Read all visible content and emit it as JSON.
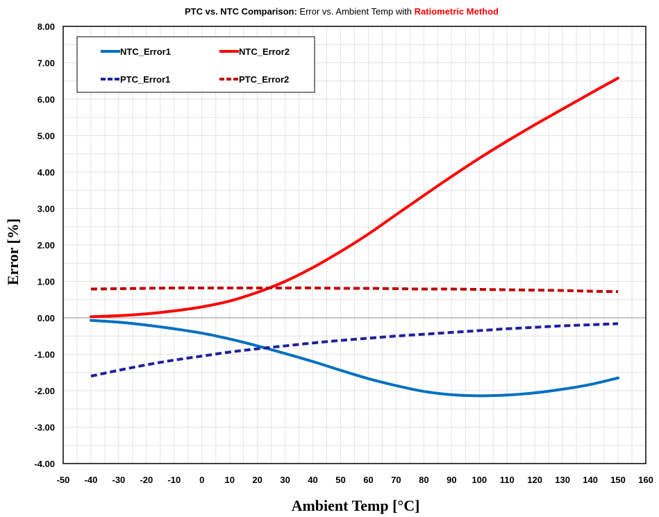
{
  "chart_data": {
    "type": "line",
    "title_parts": [
      {
        "text": "PTC vs. NTC Comparison:",
        "weight": "bold",
        "color": "#000000"
      },
      {
        "text": " Error vs. Ambient Temp with ",
        "weight": "normal",
        "color": "#000000"
      },
      {
        "text": "Ratiometric Method",
        "weight": "bold",
        "color": "#ff0000"
      }
    ],
    "xlabel": "Ambient Temp [°C]",
    "ylabel": "Error [%]",
    "xlim": [
      -50,
      160
    ],
    "ylim": [
      -4,
      8
    ],
    "x_ticks": [
      -50,
      -40,
      -30,
      -20,
      -10,
      0,
      10,
      20,
      30,
      40,
      50,
      60,
      70,
      80,
      90,
      100,
      110,
      120,
      130,
      140,
      150,
      160
    ],
    "y_ticks": [
      "-4.00",
      "-3.00",
      "-2.00",
      "-1.00",
      "0.00",
      "1.00",
      "2.00",
      "3.00",
      "4.00",
      "5.00",
      "6.00",
      "7.00",
      "8.00"
    ],
    "grid": true,
    "legend_position": "top-left",
    "x": [
      -40,
      -30,
      -20,
      -10,
      0,
      10,
      20,
      30,
      40,
      50,
      60,
      70,
      80,
      90,
      100,
      110,
      120,
      130,
      140,
      150
    ],
    "series": [
      {
        "name": "NTC_Error1",
        "color": "#0070c0",
        "dash": "solid",
        "values": [
          -0.07,
          -0.12,
          -0.2,
          -0.3,
          -0.42,
          -0.58,
          -0.77,
          -0.98,
          -1.2,
          -1.44,
          -1.67,
          -1.86,
          -2.02,
          -2.11,
          -2.14,
          -2.12,
          -2.06,
          -1.96,
          -1.83,
          -1.65
        ]
      },
      {
        "name": "NTC_Error2",
        "color": "#ff0000",
        "dash": "solid",
        "values": [
          0.03,
          0.06,
          0.11,
          0.19,
          0.3,
          0.46,
          0.7,
          1.0,
          1.38,
          1.82,
          2.3,
          2.83,
          3.36,
          3.88,
          4.38,
          4.85,
          5.3,
          5.73,
          6.16,
          6.58
        ]
      },
      {
        "name": "PTC_Error1",
        "color": "#1f1f9e",
        "dash": "dashed",
        "values": [
          -1.6,
          -1.44,
          -1.29,
          -1.16,
          -1.05,
          -0.94,
          -0.85,
          -0.77,
          -0.69,
          -0.62,
          -0.56,
          -0.5,
          -0.45,
          -0.4,
          -0.35,
          -0.3,
          -0.26,
          -0.22,
          -0.19,
          -0.16
        ]
      },
      {
        "name": "PTC_Error2",
        "color": "#c00000",
        "dash": "dashed",
        "values": [
          0.79,
          0.8,
          0.81,
          0.82,
          0.82,
          0.82,
          0.82,
          0.82,
          0.82,
          0.81,
          0.81,
          0.8,
          0.79,
          0.79,
          0.78,
          0.77,
          0.76,
          0.75,
          0.73,
          0.72
        ]
      }
    ]
  }
}
